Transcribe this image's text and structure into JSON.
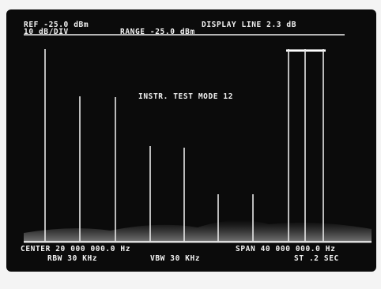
{
  "header": {
    "reference": "REF -25.0 dBm",
    "display_line": "DISPLAY LINE 2.3 dB",
    "scale": "10 dB/DIV",
    "range": "RANGE -25.0 dBm"
  },
  "annotation": "INSTR. TEST MODE 12",
  "footer": {
    "center": "CENTER 20 000 000.0 Hz",
    "span": "SPAN 40 000 000.0 Hz",
    "rbw": "RBW 30 KHz",
    "vbw": "VBW 30 KHz",
    "sweep_time": "ST .2 SEC"
  }
}
